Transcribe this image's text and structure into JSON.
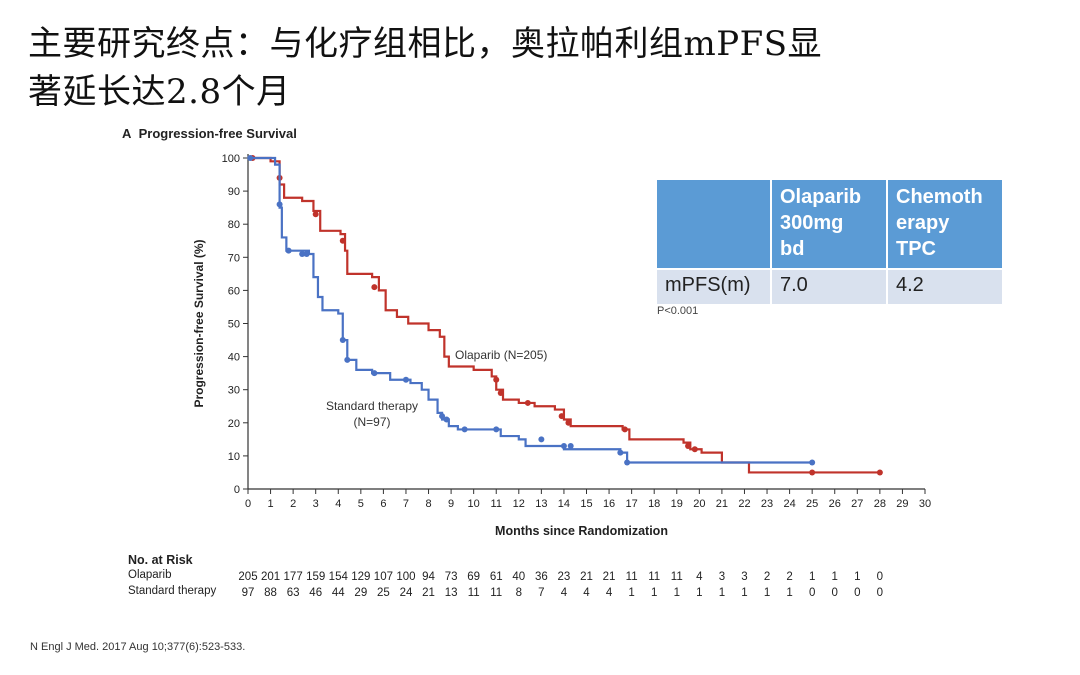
{
  "slide": {
    "title_line1": "主要研究终点：与化疗组相比，奥拉帕利组mPFS显",
    "title_line2": "著延长达2.8个月",
    "citation": "N Engl J Med. 2017 Aug 10;377(6):523-533."
  },
  "summary_table": {
    "headers": [
      "",
      "Olaparib 300mg bd",
      "Chemotherapy TPC"
    ],
    "header_lines": [
      [
        "Olaparib",
        "300mg",
        "bd"
      ],
      [
        "Chemoth",
        "erapy",
        "TPC"
      ]
    ],
    "row": {
      "label": "mPFS(m)",
      "values": [
        "7.0",
        "4.2"
      ]
    },
    "p_value": "P<0.001",
    "header_color": "#5b9bd5",
    "row_color": "#d9e1ee"
  },
  "chart_data": {
    "type": "line",
    "panel_label": "A",
    "title": "Progression-free Survival",
    "xlabel": "Months since Randomization",
    "ylabel": "Progression-free Survival (%)",
    "xlim": [
      0,
      30
    ],
    "ylim": [
      0,
      100
    ],
    "xticks": [
      0,
      1,
      2,
      3,
      4,
      5,
      6,
      7,
      8,
      9,
      10,
      11,
      12,
      13,
      14,
      15,
      16,
      17,
      18,
      19,
      20,
      21,
      22,
      23,
      24,
      25,
      26,
      27,
      28,
      29,
      30
    ],
    "yticks": [
      0,
      10,
      20,
      30,
      40,
      50,
      60,
      70,
      80,
      90,
      100
    ],
    "grid": false,
    "series": [
      {
        "name": "Olaparib (N=205)",
        "color": "#c0332b",
        "steps": [
          [
            0,
            100
          ],
          [
            1,
            99
          ],
          [
            1.4,
            92
          ],
          [
            1.6,
            88
          ],
          [
            2.4,
            87
          ],
          [
            2.9,
            84
          ],
          [
            3.2,
            78
          ],
          [
            4.1,
            77
          ],
          [
            4.3,
            72
          ],
          [
            4.4,
            65
          ],
          [
            5.5,
            64
          ],
          [
            5.8,
            60
          ],
          [
            6.1,
            54
          ],
          [
            6.6,
            52
          ],
          [
            7.1,
            50
          ],
          [
            8.0,
            48
          ],
          [
            8.5,
            46
          ],
          [
            8.7,
            40
          ],
          [
            8.9,
            37
          ],
          [
            10.0,
            36
          ],
          [
            10.8,
            34
          ],
          [
            11.0,
            30
          ],
          [
            11.3,
            27
          ],
          [
            12.0,
            26
          ],
          [
            12.7,
            25
          ],
          [
            13.6,
            24
          ],
          [
            14.0,
            21
          ],
          [
            14.3,
            19
          ],
          [
            16.6,
            18
          ],
          [
            16.9,
            15
          ],
          [
            19.3,
            14
          ],
          [
            19.6,
            12
          ],
          [
            20.1,
            11
          ],
          [
            21.0,
            8
          ],
          [
            22.2,
            5
          ],
          [
            28,
            5
          ]
        ],
        "censored": [
          [
            0.2,
            100
          ],
          [
            1.4,
            94
          ],
          [
            3.0,
            83
          ],
          [
            4.2,
            75
          ],
          [
            5.6,
            61
          ],
          [
            11.0,
            33
          ],
          [
            11.2,
            29
          ],
          [
            12.4,
            26
          ],
          [
            13.9,
            22
          ],
          [
            14.2,
            20
          ],
          [
            16.7,
            18
          ],
          [
            19.5,
            13
          ],
          [
            19.8,
            12
          ],
          [
            25,
            5
          ],
          [
            28,
            5
          ]
        ]
      },
      {
        "name": "Standard therapy (N=97)",
        "color": "#4a72c4",
        "steps": [
          [
            0,
            100
          ],
          [
            1.2,
            98
          ],
          [
            1.4,
            85
          ],
          [
            1.5,
            76
          ],
          [
            1.7,
            72
          ],
          [
            2.7,
            71
          ],
          [
            2.9,
            64
          ],
          [
            3.1,
            58
          ],
          [
            3.3,
            54
          ],
          [
            4.0,
            53
          ],
          [
            4.2,
            45
          ],
          [
            4.4,
            39
          ],
          [
            4.8,
            36
          ],
          [
            5.5,
            35
          ],
          [
            6.3,
            33
          ],
          [
            7.2,
            32
          ],
          [
            7.7,
            30
          ],
          [
            8.0,
            27
          ],
          [
            8.4,
            23
          ],
          [
            8.6,
            21
          ],
          [
            8.9,
            19
          ],
          [
            9.3,
            18
          ],
          [
            11.2,
            16
          ],
          [
            12.0,
            15
          ],
          [
            12.3,
            13
          ],
          [
            14.0,
            12
          ],
          [
            16.5,
            11
          ],
          [
            16.8,
            8
          ],
          [
            25,
            8
          ]
        ],
        "censored": [
          [
            0.1,
            100
          ],
          [
            1.4,
            86
          ],
          [
            1.8,
            72
          ],
          [
            2.4,
            71
          ],
          [
            2.6,
            71
          ],
          [
            4.2,
            45
          ],
          [
            4.4,
            39
          ],
          [
            5.6,
            35
          ],
          [
            7.0,
            33
          ],
          [
            8.6,
            22
          ],
          [
            8.8,
            21
          ],
          [
            9.6,
            18
          ],
          [
            11.0,
            18
          ],
          [
            13.0,
            15
          ],
          [
            14.0,
            13
          ],
          [
            14.3,
            13
          ],
          [
            16.5,
            11
          ],
          [
            16.8,
            8
          ],
          [
            25,
            8
          ]
        ]
      }
    ],
    "annotations": [
      "Olaparib (N=205)",
      "Standard therapy",
      "(N=97)"
    ],
    "at_risk": {
      "title": "No. at Risk",
      "rows": [
        {
          "label": "Olaparib",
          "values": [
            205,
            201,
            177,
            159,
            154,
            129,
            107,
            100,
            94,
            73,
            69,
            61,
            40,
            36,
            23,
            21,
            21,
            11,
            11,
            11,
            4,
            3,
            3,
            2,
            2,
            1,
            1,
            1,
            0
          ]
        },
        {
          "label": "Standard therapy",
          "values": [
            97,
            88,
            63,
            46,
            44,
            29,
            25,
            24,
            21,
            13,
            11,
            11,
            8,
            7,
            4,
            4,
            4,
            1,
            1,
            1,
            1,
            1,
            1,
            1,
            1,
            0,
            0,
            0,
            0
          ]
        }
      ]
    }
  }
}
